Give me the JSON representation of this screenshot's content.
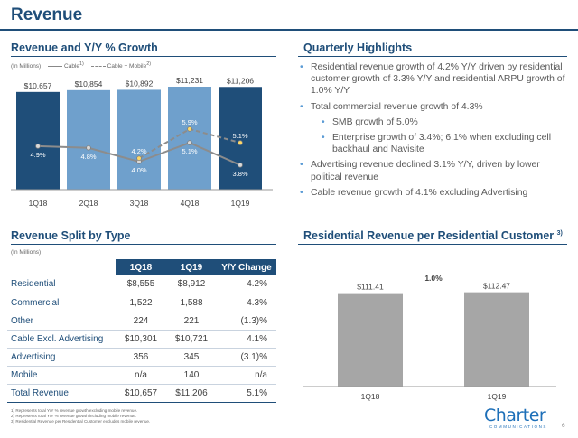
{
  "page": {
    "title": "Revenue",
    "page_number": "6"
  },
  "logo": {
    "text": "Charter",
    "subtext": "COMMUNICATIONS"
  },
  "revenue_chart": {
    "heading": "Revenue and Y/Y % Growth",
    "units": "(In Millions)",
    "legend": {
      "cable": "Cable",
      "cable_sup": "1)",
      "mobile": "Cable + Mobile",
      "mobile_sup": "2)"
    }
  },
  "chart_data": [
    {
      "type": "bar",
      "title": "Revenue and Y/Y % Growth",
      "categories": [
        "1Q18",
        "2Q18",
        "3Q18",
        "4Q18",
        "1Q19"
      ],
      "values": [
        10657,
        10854,
        10892,
        11231,
        11206
      ],
      "value_labels": [
        "$10,657",
        "$10,854",
        "$10,892",
        "$11,231",
        "$11,206"
      ],
      "bar_colors": [
        "#1f4e79",
        "#6fa0cc",
        "#6fa0cc",
        "#6fa0cc",
        "#1f4e79"
      ],
      "ylim": [
        0,
        11500
      ],
      "lines": [
        {
          "name": "Cable",
          "style": "solid",
          "values": [
            4.9,
            4.8,
            4.0,
            5.1,
            3.8
          ],
          "labels": [
            "4.9%",
            "4.8%",
            "4.0%",
            "5.1%",
            "3.8%"
          ]
        },
        {
          "name": "Cable + Mobile",
          "style": "dashed",
          "values": [
            null,
            null,
            4.2,
            5.9,
            5.1
          ],
          "labels": [
            "",
            "",
            "4.2%",
            "5.9%",
            "5.1%"
          ]
        }
      ]
    },
    {
      "type": "bar",
      "title": "Residential Revenue per Residential Customer",
      "categories": [
        "1Q18",
        "1Q19"
      ],
      "values": [
        111.41,
        112.47
      ],
      "value_labels": [
        "$111.41",
        "$112.47"
      ],
      "growth_label": "1.0%",
      "ylim": [
        0,
        125
      ]
    }
  ],
  "highlights": {
    "heading": "Quarterly Highlights",
    "items": [
      {
        "level": 1,
        "text": "Residential revenue growth of 4.2% Y/Y driven by residential customer growth of 3.3% Y/Y and residential ARPU growth of 1.0% Y/Y"
      },
      {
        "level": 1,
        "text": "Total commercial revenue growth of 4.3%"
      },
      {
        "level": 2,
        "text": "SMB growth of 5.0%"
      },
      {
        "level": 2,
        "text": "Enterprise growth of 3.4%; 6.1% when excluding cell backhaul and Navisite"
      },
      {
        "level": 1,
        "text": "Advertising revenue declined 3.1% Y/Y, driven by lower political revenue"
      },
      {
        "level": 1,
        "text": "Cable revenue growth of 4.1% excluding Advertising"
      }
    ]
  },
  "split": {
    "heading": "Revenue Split by Type",
    "units": "(In Millions)",
    "columns": [
      "1Q18",
      "1Q19",
      "Y/Y Change"
    ],
    "rows": [
      {
        "label": "Residential",
        "q1": "$8,555",
        "q2": "$8,912",
        "chg": "4.2%"
      },
      {
        "label": "Commercial",
        "q1": "1,522",
        "q2": "1,588",
        "chg": "4.3%"
      },
      {
        "label": "Other",
        "q1": "224",
        "q2": "221",
        "chg": "(1.3)%"
      },
      {
        "label": "Cable Excl. Advertising",
        "q1": "$10,301",
        "q2": "$10,721",
        "chg": "4.1%"
      },
      {
        "label": "Advertising",
        "q1": "356",
        "q2": "345",
        "chg": "(3.1)%"
      },
      {
        "label": "Mobile",
        "q1": "n/a",
        "q2": "140",
        "chg": "n/a"
      },
      {
        "label": "Total Revenue",
        "q1": "$10,657",
        "q2": "$11,206",
        "chg": "5.1%"
      }
    ]
  },
  "residential": {
    "heading": "Residential Revenue per Residential Customer",
    "heading_sup": "3)"
  },
  "footnotes": [
    "1) Represents total Y/Y % revenue growth excluding mobile revenue.",
    "2) Represents total Y/Y % revenue growth including mobile revenue.",
    "3) Residential Revenue per Residential Customer excludes mobile revenue."
  ]
}
